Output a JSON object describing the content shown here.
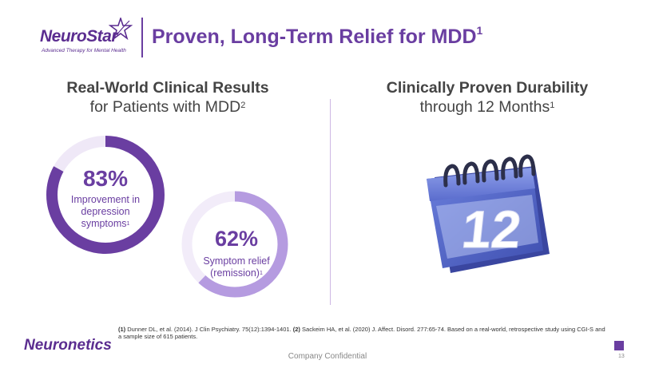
{
  "header": {
    "logo_name": "NeuroStar",
    "logo_tagline": "Advanced Therapy for Mental Health",
    "title": "Proven, Long-Term Relief for MDD",
    "title_sup": "1"
  },
  "left": {
    "heading_bold": "Real-World Clinical Results",
    "heading_line2": "for Patients with MDD",
    "heading_sup": "2",
    "stats": [
      {
        "value": "83%",
        "fraction": 0.83,
        "label_lines": [
          "Improvement in",
          "depression",
          "symptoms"
        ],
        "sup": "1",
        "color": "#6a3ea1"
      },
      {
        "value": "62%",
        "fraction": 0.62,
        "label_lines": [
          "Symptom relief",
          "(remission)"
        ],
        "sup": "1",
        "color": "#b59be0"
      }
    ]
  },
  "right": {
    "heading_bold": "Clinically Proven Durability",
    "heading_line2": "through 12 Months",
    "heading_sup": "1",
    "calendar_number": "12"
  },
  "footer": {
    "footnote_1_ref": "(1)",
    "footnote_1": "Dunner DL, et al. (2014). J Clin Psychiatry. 75(12):1394-1401.",
    "footnote_2_ref": "(2)",
    "footnote_2": "Sackeim HA, et al. (2020) J. Affect. Disord. 277:65-74. Based on a real-world, retrospective study using CGI-S and a sample size of 615 patients.",
    "brand": "Neuronetics",
    "confidential": "Company Confidential",
    "page_number": "13"
  },
  "colors": {
    "primary": "#6a3ea1",
    "light": "#b59be0",
    "calendar": "#5468c9"
  }
}
